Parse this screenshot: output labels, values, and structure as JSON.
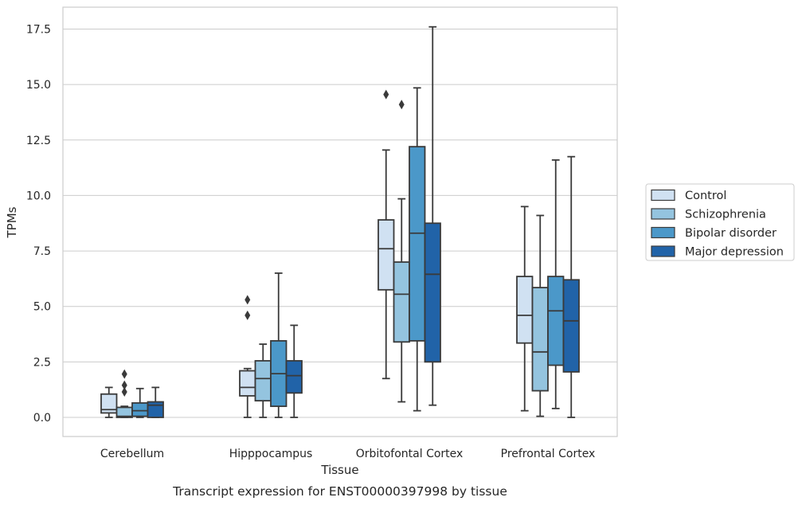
{
  "chart_data": {
    "type": "box",
    "xlabel": "Tissue",
    "ylabel": "TPMs",
    "caption": "Transcript expression for ENST00000397998 by tissue",
    "ylim": [
      -0.8,
      18.5
    ],
    "yticks": [
      "0.0",
      "2.5",
      "5.0",
      "7.5",
      "10.0",
      "12.5",
      "15.0",
      "17.5"
    ],
    "grid": "horizontal",
    "legend_position": "right",
    "categories": [
      "Cerebellum",
      "Hipppocampus",
      "Orbitofontal Cortex",
      "Prefrontal Cortex"
    ],
    "series": [
      {
        "name": "Control",
        "color": "#d0e1f2",
        "boxes": [
          {
            "whislo": 0.0,
            "q1": 0.2,
            "med": 0.35,
            "q3": 1.05,
            "whishi": 1.35,
            "fliers": []
          },
          {
            "whislo": 0.0,
            "q1": 0.97,
            "med": 1.35,
            "q3": 2.1,
            "whishi": 2.2,
            "fliers": [
              4.6,
              5.3
            ]
          },
          {
            "whislo": 1.75,
            "q1": 5.75,
            "med": 7.6,
            "q3": 8.9,
            "whishi": 12.05,
            "fliers": [
              14.55
            ]
          },
          {
            "whislo": 0.3,
            "q1": 3.35,
            "med": 4.6,
            "q3": 6.35,
            "whishi": 9.5,
            "fliers": []
          }
        ]
      },
      {
        "name": "Schizophrenia",
        "color": "#94c4df",
        "boxes": [
          {
            "whislo": 0.0,
            "q1": 0.0,
            "med": 0.05,
            "q3": 0.45,
            "whishi": 0.5,
            "fliers": [
              1.15,
              1.45,
              1.95
            ]
          },
          {
            "whislo": 0.0,
            "q1": 0.75,
            "med": 1.75,
            "q3": 2.55,
            "whishi": 3.3,
            "fliers": []
          },
          {
            "whislo": 0.7,
            "q1": 3.4,
            "med": 5.55,
            "q3": 7.0,
            "whishi": 9.85,
            "fliers": [
              14.1
            ]
          },
          {
            "whislo": 0.05,
            "q1": 1.2,
            "med": 2.95,
            "q3": 5.85,
            "whishi": 9.1,
            "fliers": []
          }
        ]
      },
      {
        "name": "Bipolar disorder",
        "color": "#4b98c9",
        "boxes": [
          {
            "whislo": 0.0,
            "q1": 0.05,
            "med": 0.3,
            "q3": 0.65,
            "whishi": 1.3,
            "fliers": []
          },
          {
            "whislo": 0.0,
            "q1": 0.5,
            "med": 1.97,
            "q3": 3.45,
            "whishi": 6.5,
            "fliers": []
          },
          {
            "whislo": 0.3,
            "q1": 3.45,
            "med": 8.3,
            "q3": 12.2,
            "whishi": 14.85,
            "fliers": []
          },
          {
            "whislo": 0.4,
            "q1": 2.35,
            "med": 4.8,
            "q3": 6.35,
            "whishi": 11.6,
            "fliers": []
          }
        ]
      },
      {
        "name": "Major depression",
        "color": "#2163a8",
        "boxes": [
          {
            "whislo": 0.0,
            "q1": 0.0,
            "med": 0.55,
            "q3": 0.7,
            "whishi": 1.35,
            "fliers": []
          },
          {
            "whislo": 0.0,
            "q1": 1.1,
            "med": 1.88,
            "q3": 2.55,
            "whishi": 4.15,
            "fliers": []
          },
          {
            "whislo": 0.55,
            "q1": 2.5,
            "med": 6.45,
            "q3": 8.75,
            "whishi": 17.6,
            "fliers": []
          },
          {
            "whislo": 0.0,
            "q1": 2.05,
            "med": 4.35,
            "q3": 6.2,
            "whishi": 11.75,
            "fliers": []
          }
        ]
      }
    ]
  }
}
